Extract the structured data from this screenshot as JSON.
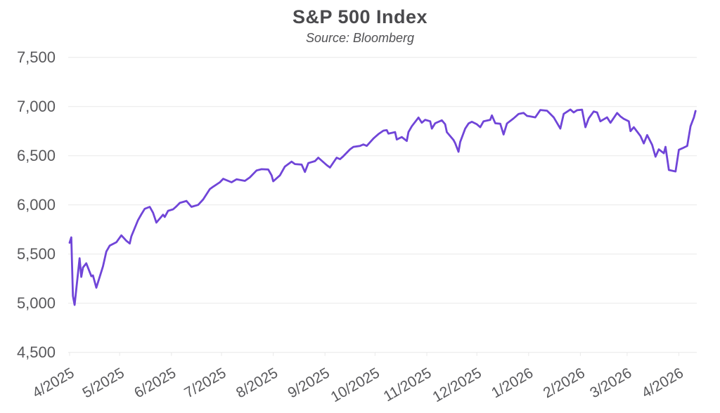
{
  "header": {
    "title": "S&P 500 Index",
    "subtitle": "Source: Bloomberg"
  },
  "colors": {
    "line": "#7045D8",
    "grid": "#ececec",
    "axis_text": "#58585b",
    "title_text": "#4a4a4d",
    "subtitle_text": "#515154",
    "background": "#ffffff"
  },
  "chart_data": {
    "type": "line",
    "title": "S&P 500 Index",
    "subtitle": "Source: Bloomberg",
    "series_name": "S&P 500 Index",
    "legend": "none",
    "grid": "horizontal",
    "ylim": [
      4500,
      7500
    ],
    "y_tick_labels": [
      "7,500",
      "7,000",
      "6,500",
      "6,000",
      "5,500",
      "5,000",
      "4,500"
    ],
    "x_tick_labels": [
      "4/2025",
      "5/2025",
      "6/2025",
      "7/2025",
      "8/2025",
      "9/2025",
      "10/2025",
      "11/2025",
      "12/2025",
      "1/2026",
      "2/2026",
      "3/2026",
      "4/2026"
    ],
    "dates": [
      "4/1/2025",
      "4/2/2025",
      "4/3/2025",
      "4/4/2025",
      "4/7/2025",
      "4/8/2025",
      "4/9/2025",
      "4/11/2025",
      "4/14/2025",
      "4/15/2025",
      "4/17/2025",
      "4/21/2025",
      "4/23/2025",
      "4/25/2025",
      "4/29/2025",
      "5/2/2025",
      "5/5/2025",
      "5/7/2025",
      "5/8/2025",
      "5/12/2025",
      "5/14/2025",
      "5/16/2025",
      "5/19/2025",
      "5/21/2025",
      "5/23/2025",
      "5/27/2025",
      "5/28/2025",
      "5/30/2025",
      "6/2/2025",
      "6/4/2025",
      "6/6/2025",
      "6/10/2025",
      "6/13/2025",
      "6/17/2025",
      "6/20/2025",
      "6/24/2025",
      "6/26/2025",
      "6/30/2025",
      "7/2/2025",
      "7/7/2025",
      "7/10/2025",
      "7/15/2025",
      "7/18/2025",
      "7/22/2025",
      "7/25/2025",
      "7/29/2025",
      "7/31/2025",
      "8/1/2025",
      "8/5/2025",
      "8/8/2025",
      "8/12/2025",
      "8/14/2025",
      "8/18/2025",
      "8/20/2025",
      "8/22/2025",
      "8/26/2025",
      "8/28/2025",
      "9/2/2025",
      "9/4/2025",
      "9/8/2025",
      "9/10/2025",
      "9/12/2025",
      "9/16/2025",
      "9/18/2025",
      "9/22/2025",
      "9/24/2025",
      "9/26/2025",
      "9/30/2025",
      "10/1/2025",
      "10/3/2025",
      "10/6/2025",
      "10/8/2025",
      "10/9/2025",
      "10/13/2025",
      "10/14/2025",
      "10/17/2025",
      "10/20/2025",
      "10/21/2025",
      "10/23/2025",
      "10/27/2025",
      "10/29/2025",
      "10/31/2025",
      "11/3/2025",
      "11/4/2025",
      "11/6/2025",
      "11/10/2025",
      "11/12/2025",
      "11/13/2025",
      "11/17/2025",
      "11/18/2025",
      "11/20/2025",
      "11/21/2025",
      "11/24/2025",
      "11/26/2025",
      "11/28/2025",
      "12/1/2025",
      "12/3/2025",
      "12/5/2025",
      "12/9/2025",
      "12/10/2025",
      "12/12/2025",
      "12/15/2025",
      "12/17/2025",
      "12/19/2025",
      "12/23/2025",
      "12/26/2025",
      "12/29/2025",
      "12/31/2025",
      "1/2/2026",
      "1/5/2026",
      "1/8/2026",
      "1/12/2026",
      "1/14/2026",
      "1/16/2026",
      "1/20/2026",
      "1/22/2026",
      "1/26/2026",
      "1/28/2026",
      "1/30/2026",
      "2/2/2026",
      "2/4/2026",
      "2/6/2026",
      "2/9/2026",
      "2/11/2026",
      "2/13/2026",
      "2/17/2026",
      "2/19/2026",
      "2/23/2026",
      "2/25/2026",
      "2/27/2026",
      "3/2/2026",
      "3/3/2026",
      "3/5/2026",
      "3/9/2026",
      "3/11/2026",
      "3/13/2026",
      "3/16/2026",
      "3/18/2026",
      "3/20/2026",
      "3/23/2026",
      "3/24/2026",
      "3/26/2026",
      "3/30/2026",
      "4/1/2026",
      "4/3/2026",
      "4/6/2026",
      "4/8/2026",
      "4/9/2026",
      "4/10/2026",
      "4/11/2026"
    ],
    "values": [
      5615,
      5670,
      5074,
      4983,
      5457,
      5268,
      5363,
      5406,
      5275,
      5283,
      5158,
      5376,
      5525,
      5585,
      5620,
      5690,
      5635,
      5607,
      5680,
      5845,
      5905,
      5960,
      5980,
      5920,
      5820,
      5900,
      5877,
      5940,
      5955,
      5985,
      6020,
      6040,
      5980,
      6000,
      6055,
      6160,
      6185,
      6230,
      6265,
      6230,
      6260,
      6244,
      6280,
      6350,
      6363,
      6360,
      6300,
      6240,
      6300,
      6390,
      6440,
      6415,
      6410,
      6335,
      6425,
      6445,
      6480,
      6405,
      6380,
      6480,
      6465,
      6495,
      6565,
      6590,
      6600,
      6615,
      6600,
      6675,
      6690,
      6720,
      6755,
      6760,
      6725,
      6740,
      6665,
      6690,
      6650,
      6740,
      6800,
      6888,
      6836,
      6865,
      6850,
      6776,
      6830,
      6860,
      6820,
      6740,
      6660,
      6627,
      6540,
      6640,
      6776,
      6828,
      6845,
      6820,
      6790,
      6850,
      6865,
      6910,
      6830,
      6825,
      6716,
      6828,
      6880,
      6925,
      6935,
      6905,
      6900,
      6890,
      6965,
      6958,
      6925,
      6890,
      6776,
      6925,
      6970,
      6940,
      6963,
      6968,
      6790,
      6880,
      6950,
      6940,
      6850,
      6890,
      6835,
      6935,
      6900,
      6875,
      6850,
      6750,
      6790,
      6700,
      6625,
      6710,
      6610,
      6490,
      6565,
      6525,
      6590,
      6355,
      6340,
      6560,
      6575,
      6600,
      6800,
      6845,
      6890,
      6955
    ]
  }
}
